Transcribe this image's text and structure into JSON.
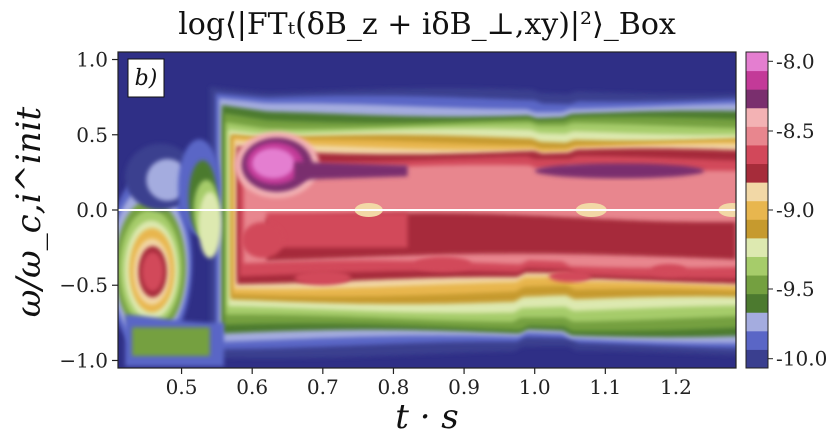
{
  "chart_data": {
    "type": "heatmap",
    "title": "log⟨|FTₜ(δB_z + iδB_⊥,xy)|²⟩_Box",
    "panel_label": "b)",
    "xlabel": "t · s",
    "ylabel": "ω/ω_c,i^init",
    "xlim": [
      0.41,
      1.285
    ],
    "ylim": [
      -1.05,
      1.05
    ],
    "x_ticks": [
      "0.5",
      "0.6",
      "0.7",
      "0.8",
      "0.9",
      "1.0",
      "1.1",
      "1.2"
    ],
    "x_tick_values": [
      0.5,
      0.6,
      0.7,
      0.8,
      0.9,
      1.0,
      1.1,
      1.2
    ],
    "y_ticks": [
      "1.0",
      "0.5",
      "0.0",
      "−0.5",
      "−1.0"
    ],
    "y_tick_values": [
      1.0,
      0.5,
      0.0,
      -0.5,
      -1.0
    ],
    "zero_line_y": 0.0,
    "colorbar": {
      "range": [
        -10.0,
        -8.0
      ],
      "tick_labels": [
        "-8.0",
        "-8.5",
        "-9.0",
        "-9.5",
        "-10.0"
      ],
      "tick_values": [
        -8.0,
        -8.5,
        -9.0,
        -9.5,
        -10.0
      ],
      "levels": [
        {
          "from": -10.0,
          "to": -9.875,
          "color": "#3a3f8f"
        },
        {
          "from": -9.875,
          "to": -9.75,
          "color": "#5a66c6"
        },
        {
          "from": -9.75,
          "to": -9.625,
          "color": "#a4acdf"
        },
        {
          "from": -9.625,
          "to": -9.5,
          "color": "#4c7a2f"
        },
        {
          "from": -9.5,
          "to": -9.375,
          "color": "#74a040"
        },
        {
          "from": -9.375,
          "to": -9.25,
          "color": "#a6cc6a"
        },
        {
          "from": -9.25,
          "to": -9.125,
          "color": "#dde9b0"
        },
        {
          "from": -9.125,
          "to": -9.0,
          "color": "#c69a2e"
        },
        {
          "from": -9.0,
          "to": -8.875,
          "color": "#e8b64e"
        },
        {
          "from": -8.875,
          "to": -8.75,
          "color": "#f2d8a6"
        },
        {
          "from": -8.75,
          "to": -8.625,
          "color": "#a62c3a"
        },
        {
          "from": -8.625,
          "to": -8.5,
          "color": "#d2485a"
        },
        {
          "from": -8.5,
          "to": -8.375,
          "color": "#e8868e"
        },
        {
          "from": -8.375,
          "to": -8.25,
          "color": "#f3b2b4"
        },
        {
          "from": -8.25,
          "to": -8.125,
          "color": "#7a2f6e"
        },
        {
          "from": -8.125,
          "to": -8.0,
          "color": "#c33a98"
        },
        {
          "from": -8.0,
          "to": -7.875,
          "color": "#e47ed0"
        }
      ]
    },
    "features": [
      {
        "name": "background",
        "t": [
          0.41,
          1.285
        ],
        "omega": [
          -1.05,
          1.05
        ],
        "level": -10.0
      },
      {
        "name": "upper-outer-band",
        "t": [
          0.55,
          1.285
        ],
        "omega": [
          -0.92,
          0.78
        ],
        "level": -9.8
      },
      {
        "name": "main-band",
        "t": [
          0.56,
          1.285
        ],
        "omega": [
          -0.8,
          0.6
        ],
        "level": -9.4
      },
      {
        "name": "main-band-core",
        "t": [
          0.58,
          1.285
        ],
        "omega": [
          -0.55,
          0.42
        ],
        "level": -8.9
      },
      {
        "name": "upper-hotspot",
        "t": [
          0.59,
          0.69
        ],
        "omega": [
          0.12,
          0.48
        ],
        "level": -8.0
      },
      {
        "name": "left-lobe",
        "t": [
          0.42,
          0.5
        ],
        "omega": [
          -0.75,
          0.08
        ],
        "level": -8.7
      },
      {
        "name": "zero-line-spots",
        "t": [
          0.76,
          1.28
        ],
        "omega": [
          -0.03,
          0.03
        ],
        "level": -8.9
      }
    ]
  }
}
